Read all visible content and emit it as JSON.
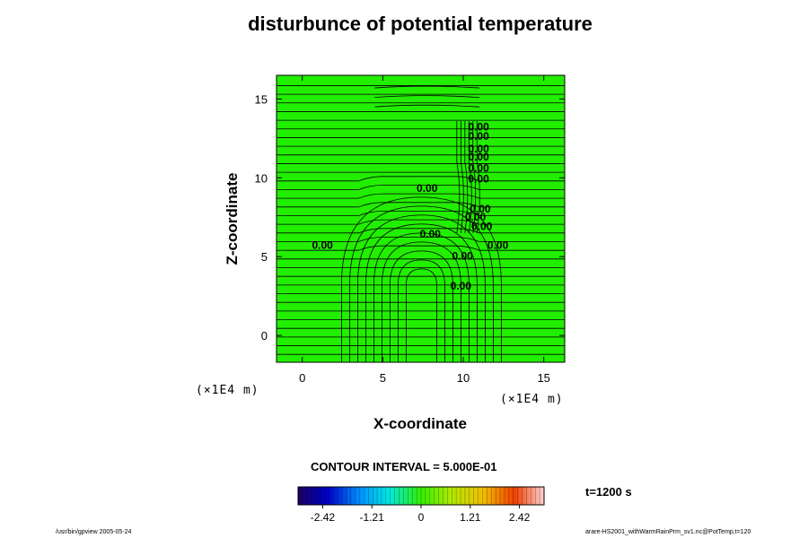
{
  "title": "disturbunce of potential temperature",
  "chart_data": {
    "type": "contour",
    "title": "disturbunce of potential temperature",
    "xlabel": "X-coordinate",
    "ylabel": "Z-coordinate",
    "x_unit": "(×1E4 m)",
    "z_unit": "(×1E4 m)",
    "x_ticks": [
      0,
      5,
      10,
      15
    ],
    "z_ticks": [
      0,
      5,
      10,
      15
    ],
    "xlim": [
      -1.6,
      16.3
    ],
    "zlim": [
      -1.7,
      16.5
    ],
    "fill_color": "#22ee00",
    "contour_labels": [
      {
        "text": "0.00",
        "x": 10.3,
        "z": 13.0
      },
      {
        "text": "0.00",
        "x": 10.3,
        "z": 12.4
      },
      {
        "text": "0.00",
        "x": 10.3,
        "z": 11.6
      },
      {
        "text": "0.00",
        "x": 10.3,
        "z": 11.1
      },
      {
        "text": "0.00",
        "x": 10.3,
        "z": 10.4
      },
      {
        "text": "0.00",
        "x": 10.3,
        "z": 9.7
      },
      {
        "text": "0.00",
        "x": 7.1,
        "z": 9.1
      },
      {
        "text": "0.00",
        "x": 0.6,
        "z": 5.5
      },
      {
        "text": "0.00",
        "x": 11.5,
        "z": 5.5
      },
      {
        "text": "0.00",
        "x": 7.3,
        "z": 6.2
      },
      {
        "text": "0.00",
        "x": 10.4,
        "z": 7.8
      },
      {
        "text": "0.00",
        "x": 10.1,
        "z": 7.3
      },
      {
        "text": "0.00",
        "x": 10.5,
        "z": 6.7
      },
      {
        "text": "0.00",
        "x": 9.3,
        "z": 4.8
      },
      {
        "text": "0.00",
        "x": 9.2,
        "z": 2.9
      }
    ],
    "contour_interval_text": "CONTOUR INTERVAL = 5.000E-01",
    "colorbar": {
      "min": -3.025,
      "max": 3.025,
      "ticks": [
        "-2.42",
        "-1.21",
        "0",
        "1.21",
        "2.42"
      ],
      "tick_values": [
        -2.42,
        -1.21,
        0,
        1.21,
        2.42
      ]
    }
  },
  "time_label": "t=1200 s",
  "footer_left": "/usr/bin/gpview 2005-05-24",
  "footer_right": "arare-HS2001_withWarmRainPrm_sv1.nc@PotTemp,t=120"
}
